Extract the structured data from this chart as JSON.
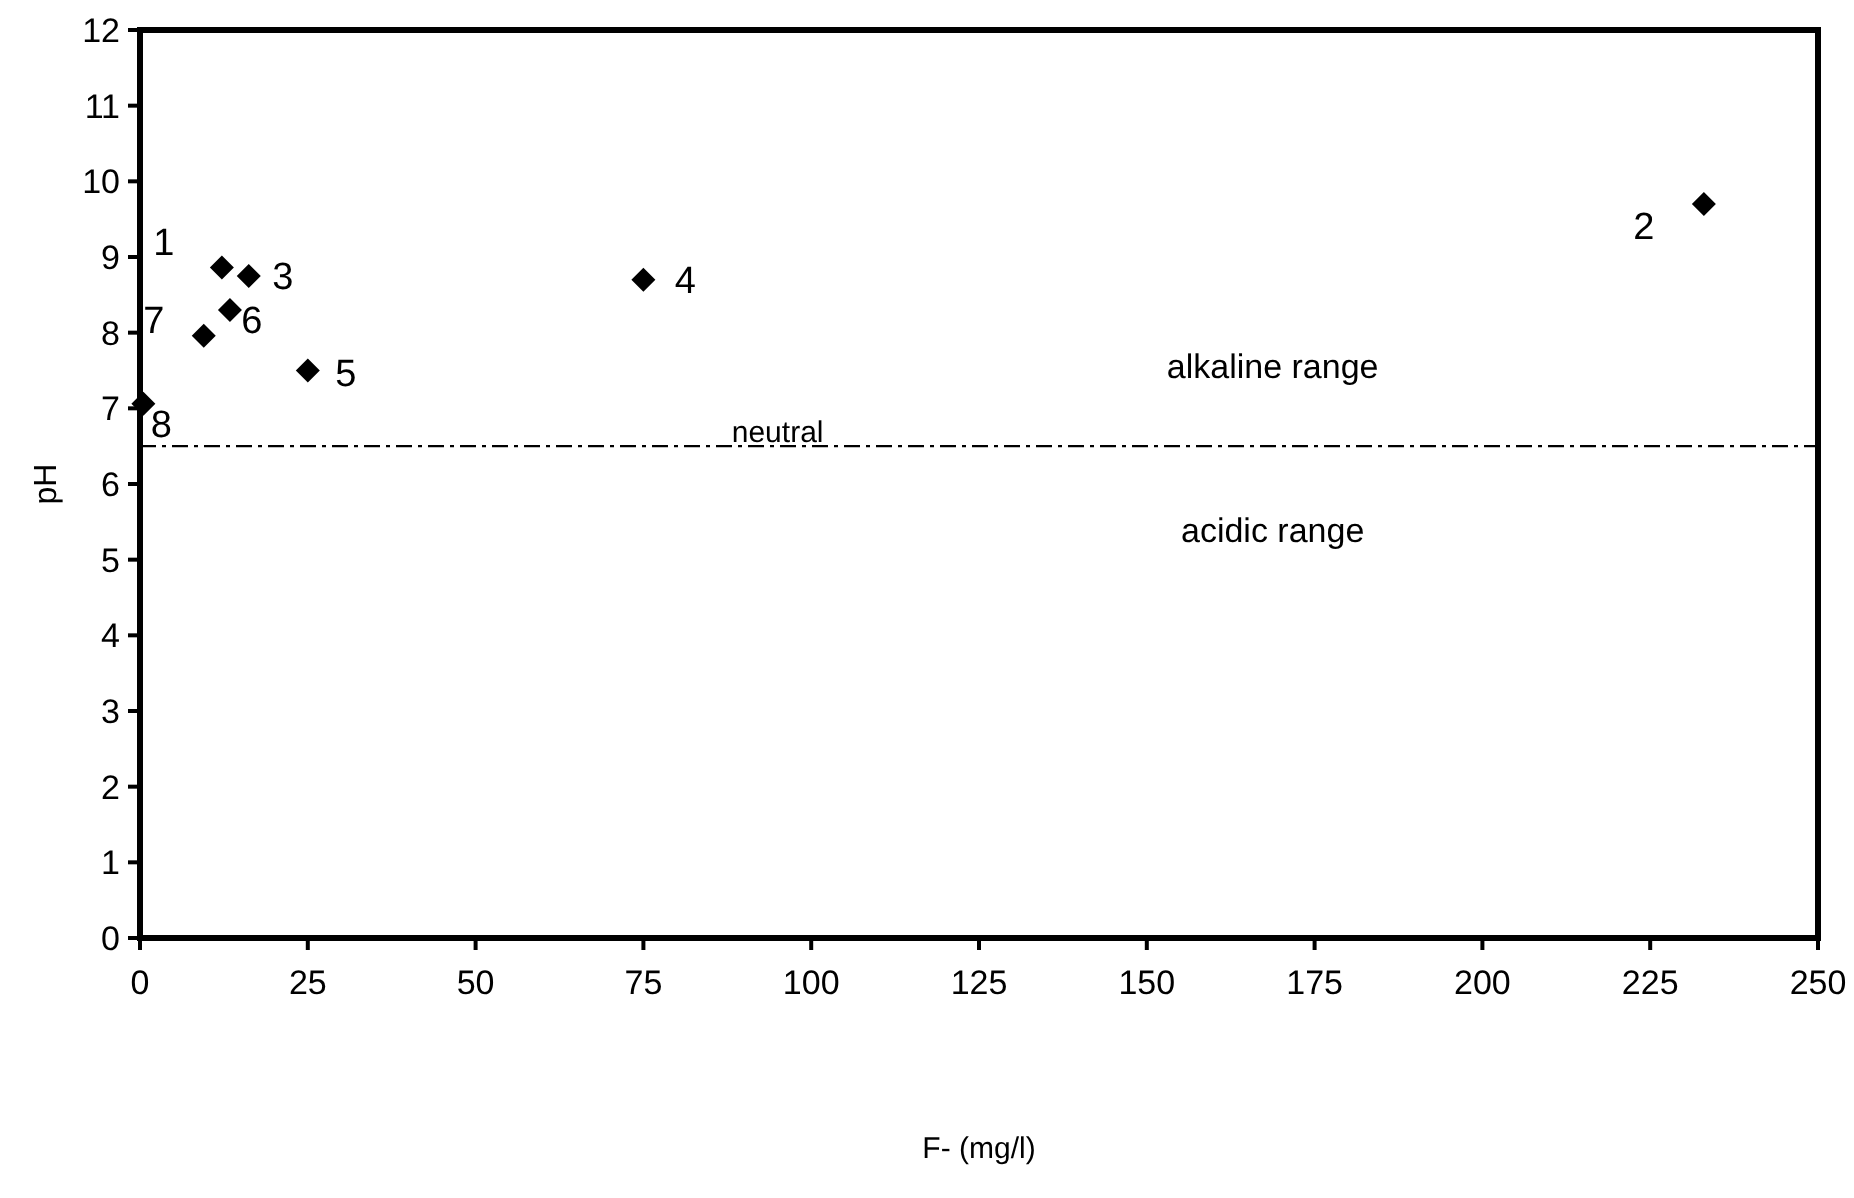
{
  "chart_data": {
    "type": "scatter",
    "xlabel": "F- (mg/l)",
    "ylabel": "pH",
    "x": [
      0.5,
      9.5,
      12.2,
      13.4,
      16.2,
      25,
      75,
      233
    ],
    "series": [
      {
        "color": "#000000",
        "values": [
          7.06,
          7.96,
          8.86,
          8.3,
          8.75,
          7.5,
          8.7,
          9.7
        ]
      }
    ],
    "marker": "diamond",
    "grid": false,
    "xlim": [
      0,
      250
    ],
    "xticks": [
      0,
      25,
      50,
      75,
      100,
      125,
      150,
      175,
      200,
      225,
      250
    ],
    "ylim": [
      0,
      12
    ],
    "yticks": [
      0,
      1,
      2,
      3,
      4,
      5,
      6,
      7,
      8,
      9,
      10,
      11,
      12
    ],
    "ref_lines": [
      {
        "axis": "y",
        "value": 6.5,
        "label": "neutral",
        "color": "#000000",
        "line_style": "dashdot"
      }
    ],
    "annotations": [
      {
        "text": "1",
        "x": 12.2,
        "y": 8.86
      },
      {
        "text": "2",
        "x": 233,
        "y": 9.7
      },
      {
        "text": "3",
        "x": 16.2,
        "y": 8.75
      },
      {
        "text": "4",
        "x": 75,
        "y": 8.7
      },
      {
        "text": "5",
        "x": 25,
        "y": 7.5
      },
      {
        "text": "6",
        "x": 13.4,
        "y": 8.3
      },
      {
        "text": "7",
        "x": 9.5,
        "y": 7.96
      },
      {
        "text": "8",
        "x": 0.5,
        "y": 7.06
      },
      "alkaline range",
      "acidic range"
    ]
  }
}
